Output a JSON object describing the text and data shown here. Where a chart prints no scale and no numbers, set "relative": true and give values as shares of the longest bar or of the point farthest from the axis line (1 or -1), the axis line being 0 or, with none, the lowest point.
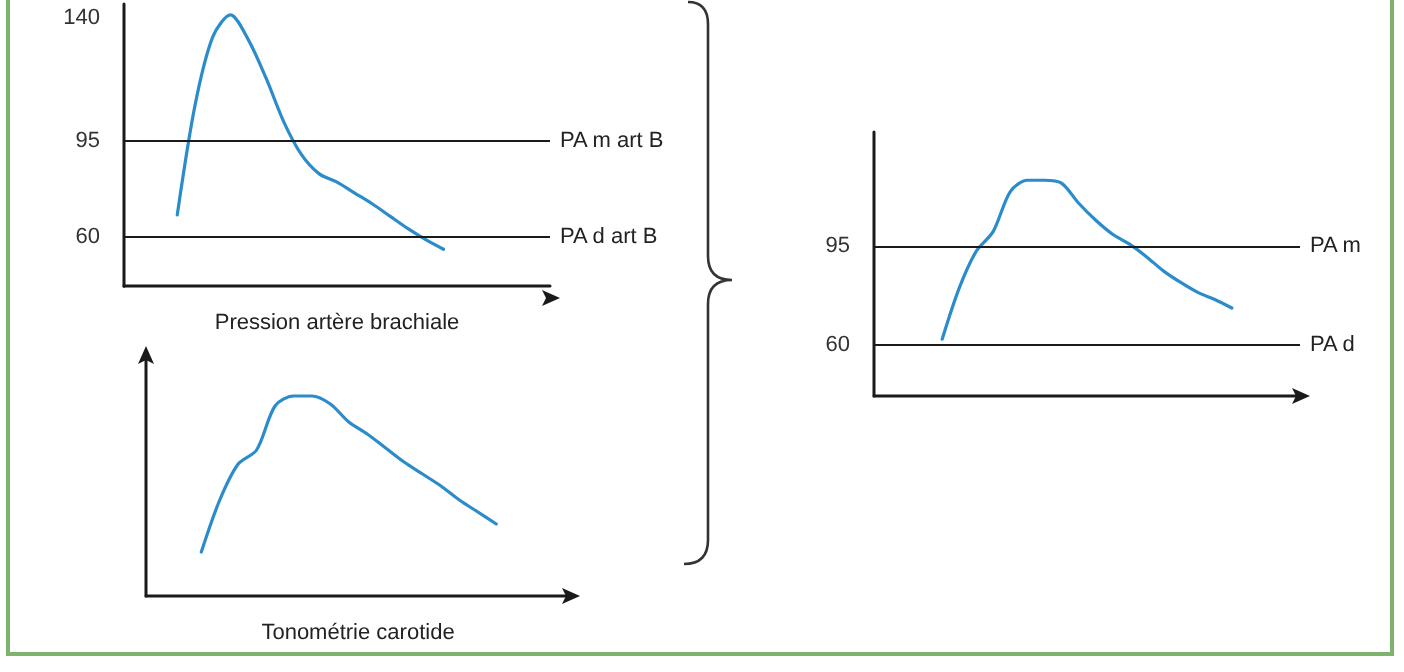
{
  "chart_data": [
    {
      "type": "line",
      "xlabel": "Pression artère brachiale",
      "categories": [
        null,
        null,
        null,
        null,
        null,
        null,
        null,
        null,
        null,
        null,
        null,
        null,
        null,
        null,
        null,
        null,
        null,
        null,
        null,
        null,
        null,
        null,
        null,
        null,
        null
      ],
      "values": [
        null,
        null,
        null,
        68,
        108,
        133,
        141,
        132,
        118,
        102,
        90,
        83,
        80,
        76,
        72,
        67.5,
        63,
        59,
        55.5,
        null,
        null,
        null,
        null,
        null,
        null
      ],
      "color": "#2b8ccc",
      "ylim": [
        42,
        145
      ],
      "yticks": [
        60,
        95,
        140
      ],
      "ref_lines": [
        {
          "axis": "y",
          "value": 95,
          "label": "PA m art B"
        },
        {
          "axis": "y",
          "value": 60,
          "label": "PA d art B"
        }
      ]
    },
    {
      "type": "line",
      "xlabel": "Tonométrie carotide",
      "relative": true,
      "categories": [
        null,
        null,
        null,
        null,
        null,
        null,
        null,
        null,
        null,
        null,
        null,
        null,
        null,
        null,
        null,
        null,
        null,
        null,
        null,
        null,
        null,
        null,
        null,
        null
      ],
      "values": [
        null,
        null,
        null,
        0.22,
        0.48,
        0.66,
        0.73,
        0.95,
        1,
        1,
        0.96,
        0.87,
        0.81,
        0.74,
        0.67,
        0.61,
        0.55,
        0.48,
        0.42,
        0.36,
        null,
        null,
        null,
        null
      ],
      "color": "#2b8ccc"
    },
    {
      "type": "line",
      "categories": [
        null,
        null,
        null,
        null,
        null,
        null,
        null,
        null,
        null,
        null,
        null,
        null,
        null,
        null,
        null,
        null,
        null,
        null,
        null,
        null,
        null,
        null,
        null,
        null,
        null,
        null
      ],
      "values": [
        null,
        null,
        null,
        null,
        62,
        80,
        93,
        100,
        114,
        118,
        118,
        117,
        110,
        104,
        99,
        95.5,
        91,
        86,
        82,
        78.5,
        76,
        73,
        null,
        null,
        null,
        null
      ],
      "color": "#2b8ccc",
      "ylim": [
        42,
        135
      ],
      "yticks": [
        60,
        95
      ],
      "ref_lines": [
        {
          "axis": "y",
          "value": 95,
          "label": "PA m"
        },
        {
          "axis": "y",
          "value": 60,
          "label": "PA d"
        }
      ]
    }
  ]
}
